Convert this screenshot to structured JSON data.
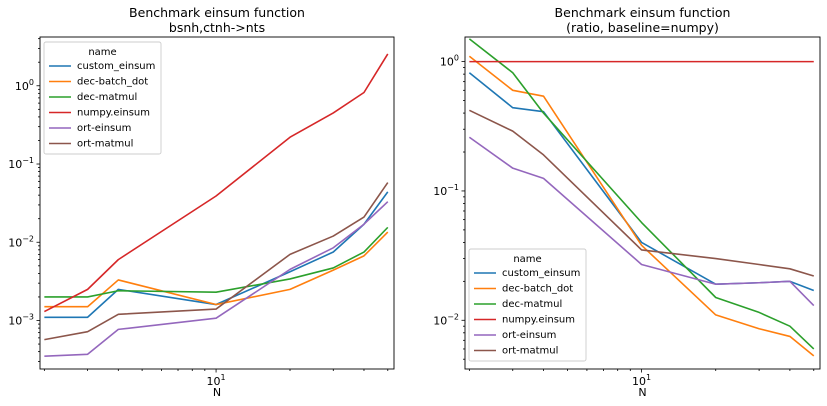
{
  "chart_data": [
    {
      "type": "line",
      "title": "Benchmark einsum function",
      "subtitle": "bsnh,ctnh->nts",
      "xlabel": "N",
      "ylabel": "",
      "xscale": "log",
      "yscale": "log",
      "xlim": [
        1.92,
        53
      ],
      "ylim": [
        0.00024,
        4.2
      ],
      "x_ticks": [
        {
          "value": 10,
          "label": "10^1"
        }
      ],
      "y_ticks": [
        {
          "value": 0.001,
          "label": "10^-3"
        },
        {
          "value": 0.01,
          "label": "10^-2"
        },
        {
          "value": 0.1,
          "label": "10^-1"
        },
        {
          "value": 1,
          "label": "10^0"
        }
      ],
      "grid": false,
      "legend": {
        "title": "name",
        "position": "top-left"
      },
      "x": [
        2,
        3,
        4,
        10,
        20,
        30,
        40,
        50
      ],
      "series": [
        {
          "name": "custom_einsum",
          "color": "#1f77b4",
          "values": [
            0.0011,
            0.0011,
            0.0025,
            0.0016,
            0.0042,
            0.0075,
            0.017,
            0.044
          ]
        },
        {
          "name": "dec-batch_dot",
          "color": "#ff7f0e",
          "values": [
            0.0015,
            0.0015,
            0.0033,
            0.0016,
            0.0025,
            0.0044,
            0.0067,
            0.0135
          ]
        },
        {
          "name": "dec-matmul",
          "color": "#2ca02c",
          "values": [
            0.002,
            0.002,
            0.0024,
            0.0023,
            0.0034,
            0.0047,
            0.0075,
            0.0155
          ]
        },
        {
          "name": "numpy.einsum",
          "color": "#d62728",
          "values": [
            0.0013,
            0.0025,
            0.006,
            0.039,
            0.22,
            0.45,
            0.82,
            2.55
          ]
        },
        {
          "name": "ort-einsum",
          "color": "#9467bd",
          "values": [
            0.00035,
            0.00037,
            0.00077,
            0.00107,
            0.0045,
            0.0085,
            0.017,
            0.033
          ]
        },
        {
          "name": "ort-matmul",
          "color": "#8c564b",
          "values": [
            0.00057,
            0.00072,
            0.0012,
            0.0014,
            0.007,
            0.012,
            0.021,
            0.058
          ]
        }
      ]
    },
    {
      "type": "line",
      "title": "Benchmark einsum function",
      "subtitle": "(ratio, baseline=numpy)",
      "xlabel": "N",
      "ylabel": "",
      "xscale": "log",
      "yscale": "log",
      "xlim": [
        1.92,
        53
      ],
      "ylim": [
        0.0042,
        1.55
      ],
      "x_ticks": [
        {
          "value": 10,
          "label": "10^1"
        }
      ],
      "y_ticks": [
        {
          "value": 0.01,
          "label": "10^-2"
        },
        {
          "value": 0.1,
          "label": "10^-1"
        },
        {
          "value": 1,
          "label": "10^0"
        }
      ],
      "grid": false,
      "legend": {
        "title": "name",
        "position": "bottom-left"
      },
      "x": [
        2,
        3,
        4,
        10,
        20,
        30,
        40,
        50
      ],
      "series": [
        {
          "name": "custom_einsum",
          "color": "#1f77b4",
          "values": [
            0.82,
            0.44,
            0.41,
            0.04,
            0.019,
            0.0195,
            0.02,
            0.017
          ]
        },
        {
          "name": "dec-batch_dot",
          "color": "#ff7f0e",
          "values": [
            1.1,
            0.6,
            0.54,
            0.038,
            0.011,
            0.0086,
            0.0075,
            0.0053
          ]
        },
        {
          "name": "dec-matmul",
          "color": "#2ca02c",
          "values": [
            1.5,
            0.82,
            0.4,
            0.057,
            0.015,
            0.0115,
            0.009,
            0.006
          ]
        },
        {
          "name": "numpy.einsum",
          "color": "#d62728",
          "values": [
            1.0,
            1.0,
            1.0,
            1.0,
            1.0,
            1.0,
            1.0,
            1.0
          ]
        },
        {
          "name": "ort-einsum",
          "color": "#9467bd",
          "values": [
            0.26,
            0.15,
            0.125,
            0.027,
            0.019,
            0.0195,
            0.02,
            0.013
          ]
        },
        {
          "name": "ort-matmul",
          "color": "#8c564b",
          "values": [
            0.42,
            0.29,
            0.19,
            0.035,
            0.03,
            0.027,
            0.025,
            0.022
          ]
        }
      ]
    }
  ]
}
